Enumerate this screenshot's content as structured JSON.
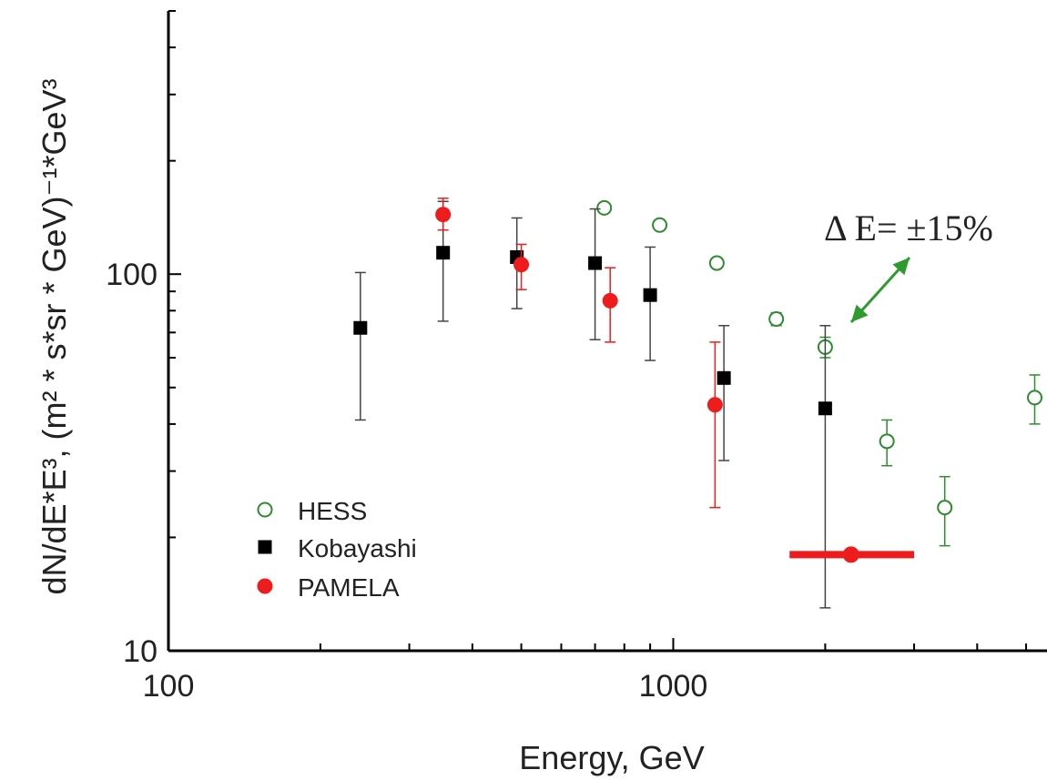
{
  "chart_data": {
    "type": "scatter",
    "xlabel": "Energy, GeV",
    "ylabel": "dN/dE*E³, (m² * s*sr * GeV)⁻¹*GeV³",
    "xscale": "log",
    "yscale": "log",
    "xlim": [
      100,
      5500
    ],
    "ylim": [
      10,
      500
    ],
    "x_ticks": [
      "100",
      "1000"
    ],
    "y_ticks": [
      "10",
      "100"
    ],
    "grid": false,
    "legend_position": "bottom-left",
    "series": [
      {
        "name": "HESS",
        "marker": "open-circle",
        "color": "#2e8b2e",
        "points": [
          {
            "x": 730,
            "y": 150,
            "err_lo": 146,
            "err_hi": 153
          },
          {
            "x": 940,
            "y": 135,
            "err_lo": 132,
            "err_hi": 138
          },
          {
            "x": 1220,
            "y": 107,
            "err_lo": 104,
            "err_hi": 110
          },
          {
            "x": 1600,
            "y": 76,
            "err_lo": 73,
            "err_hi": 79
          },
          {
            "x": 2000,
            "y": 64,
            "err_lo": 60,
            "err_hi": 68
          },
          {
            "x": 2650,
            "y": 36,
            "err_lo": 31,
            "err_hi": 41
          },
          {
            "x": 3450,
            "y": 24,
            "err_lo": 19,
            "err_hi": 29
          },
          {
            "x": 5200,
            "y": 47,
            "err_lo": 40,
            "err_hi": 54
          }
        ]
      },
      {
        "name": "Kobayashi",
        "marker": "filled-square",
        "color": "#000000",
        "points": [
          {
            "x": 240,
            "y": 72,
            "err_lo": 41,
            "err_hi": 101
          },
          {
            "x": 350,
            "y": 114,
            "err_lo": 75,
            "err_hi": 156
          },
          {
            "x": 490,
            "y": 111,
            "err_lo": 81,
            "err_hi": 141
          },
          {
            "x": 700,
            "y": 107,
            "err_lo": 67,
            "err_hi": 149
          },
          {
            "x": 900,
            "y": 88,
            "err_lo": 59,
            "err_hi": 118
          },
          {
            "x": 1260,
            "y": 53,
            "err_lo": 32,
            "err_hi": 73
          },
          {
            "x": 2000,
            "y": 44,
            "err_lo": 13,
            "err_hi": 73
          }
        ]
      },
      {
        "name": "PAMELA",
        "marker": "filled-circle",
        "color": "#ee1c1c",
        "points": [
          {
            "x": 350,
            "y": 144,
            "err_lo": 131,
            "err_hi": 159
          },
          {
            "x": 500,
            "y": 106,
            "err_lo": 91,
            "err_hi": 120
          },
          {
            "x": 750,
            "y": 85,
            "err_lo": 66,
            "err_hi": 104
          },
          {
            "x": 1210,
            "y": 45,
            "err_lo": 24,
            "err_hi": 66
          }
        ]
      }
    ],
    "extra_point": {
      "x": 2250,
      "y": 18,
      "x_lo": 1700,
      "x_hi": 3000,
      "color": "#ee1c1c"
    },
    "annotation": {
      "text": "Δ E= ±15%",
      "color": "#2e9b2e"
    }
  }
}
